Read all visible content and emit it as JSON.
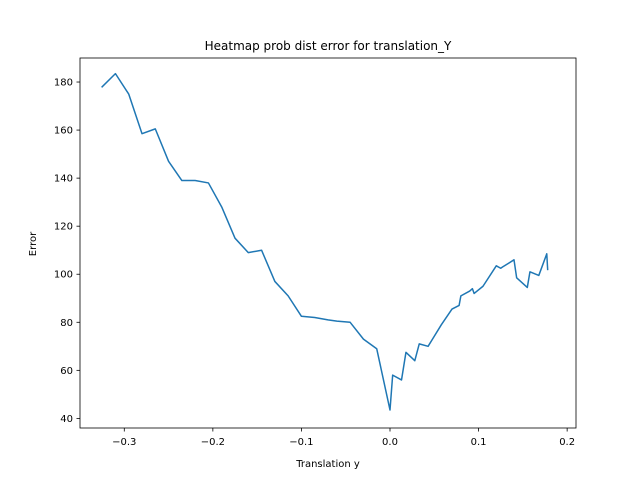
{
  "chart_data": {
    "type": "line",
    "title": "Heatmap prob dist error for translation_Y",
    "xlabel": "Translation y",
    "ylabel": "Error",
    "xlim": [
      -0.35,
      0.21
    ],
    "ylim": [
      36,
      190
    ],
    "x_ticks": [
      -0.3,
      -0.2,
      -0.1,
      0.0,
      0.1,
      0.2
    ],
    "x_tick_labels": [
      "−0.3",
      "−0.2",
      "−0.1",
      "0.0",
      "0.1",
      "0.2"
    ],
    "y_ticks": [
      40,
      60,
      80,
      100,
      120,
      140,
      160,
      180
    ],
    "y_tick_labels": [
      "40",
      "60",
      "80",
      "100",
      "120",
      "140",
      "160",
      "180"
    ],
    "grid": false,
    "color": "#1f77b4",
    "series": [
      {
        "x": [
          -0.325,
          -0.31,
          -0.295,
          -0.28,
          -0.265,
          -0.25,
          -0.235,
          -0.22,
          -0.205,
          -0.19,
          -0.175,
          -0.16,
          -0.145,
          -0.13,
          -0.115,
          -0.1,
          -0.085,
          -0.07,
          -0.06,
          -0.045,
          -0.03,
          -0.015,
          0.0,
          0.003,
          0.013,
          0.018,
          0.028,
          0.033,
          0.043,
          0.048,
          0.058,
          0.07,
          0.078,
          0.08,
          0.09,
          0.093,
          0.095,
          0.105,
          0.12,
          0.125,
          0.127,
          0.14,
          0.143,
          0.155,
          0.158,
          0.168,
          0.177,
          0.178
        ],
        "y": [
          178,
          183.5,
          175,
          158.5,
          160.5,
          147,
          139,
          139,
          138,
          128,
          115,
          109,
          110,
          97,
          91,
          82.5,
          82,
          81,
          80.5,
          80,
          73,
          69,
          43.5,
          58,
          56,
          67.5,
          64,
          71,
          70,
          73,
          79,
          85.5,
          87,
          91,
          93,
          94,
          92,
          95,
          103.5,
          102.5,
          103,
          106,
          98.5,
          94.5,
          101,
          99.5,
          108.5,
          102
        ]
      }
    ]
  }
}
